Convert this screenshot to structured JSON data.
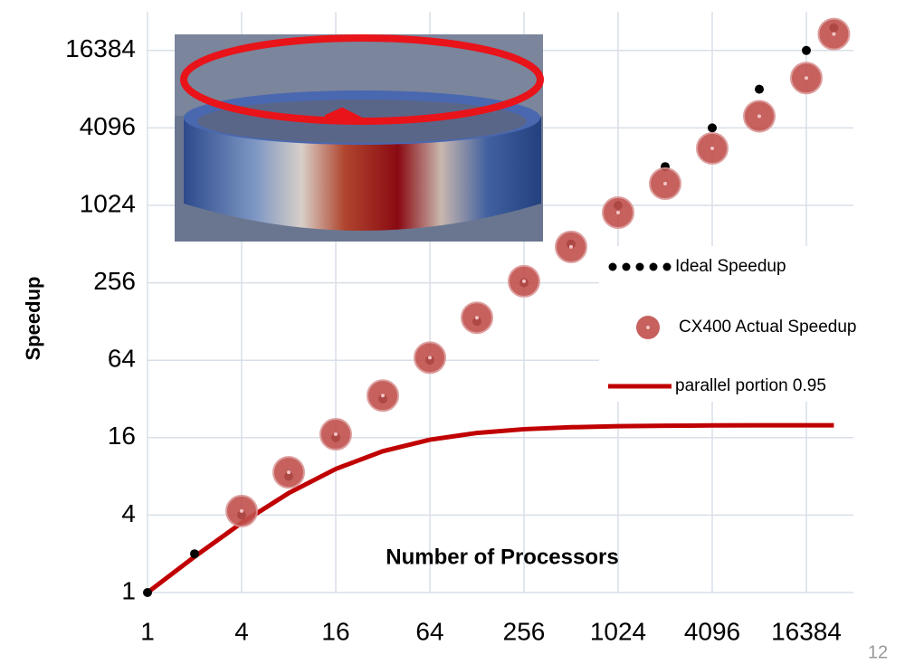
{
  "chart_data": {
    "type": "line",
    "xlabel": "Number of Processors",
    "ylabel": "Speedup",
    "xscale": "log2",
    "yscale": "log2",
    "xlim": [
      1,
      32768
    ],
    "ylim": [
      1,
      32768
    ],
    "xticks": [
      1,
      4,
      16,
      64,
      256,
      1024,
      4096,
      16384
    ],
    "yticks": [
      1,
      4,
      16,
      64,
      256,
      1024,
      4096,
      16384
    ],
    "grid": true,
    "series": [
      {
        "name": "Ideal Speedup",
        "style": "dotted",
        "color": "#000000",
        "x": [
          1,
          2,
          4,
          8,
          16,
          32,
          64,
          128,
          256,
          512,
          1024,
          2048,
          4096,
          8192,
          16384,
          24576
        ],
        "values": [
          1,
          2,
          4,
          8,
          16,
          32,
          64,
          128,
          256,
          512,
          1024,
          2048,
          4096,
          8192,
          16384,
          24576
        ]
      },
      {
        "name": "CX400 Actual Speedup",
        "style": "markers",
        "color": "#c0504d",
        "x": [
          4,
          8,
          16,
          32,
          64,
          128,
          256,
          512,
          1024,
          2048,
          4096,
          8192,
          16384,
          24576
        ],
        "values": [
          4.3,
          8.6,
          17,
          34,
          67,
          137,
          263,
          487,
          900,
          1510,
          2840,
          5050,
          10000,
          22000
        ]
      },
      {
        "name": "parallel portion 0.95",
        "style": "line",
        "color": "#c00000",
        "x": [
          1,
          2,
          4,
          8,
          16,
          32,
          64,
          128,
          256,
          512,
          1024,
          2048,
          4096,
          8192,
          16384,
          24576
        ],
        "values": [
          1,
          1.9,
          3.48,
          5.93,
          9.14,
          12.55,
          15.42,
          17.41,
          18.62,
          19.28,
          19.63,
          19.81,
          19.91,
          19.95,
          19.98,
          19.98
        ]
      }
    ],
    "legend": "right",
    "page_number": "12"
  }
}
